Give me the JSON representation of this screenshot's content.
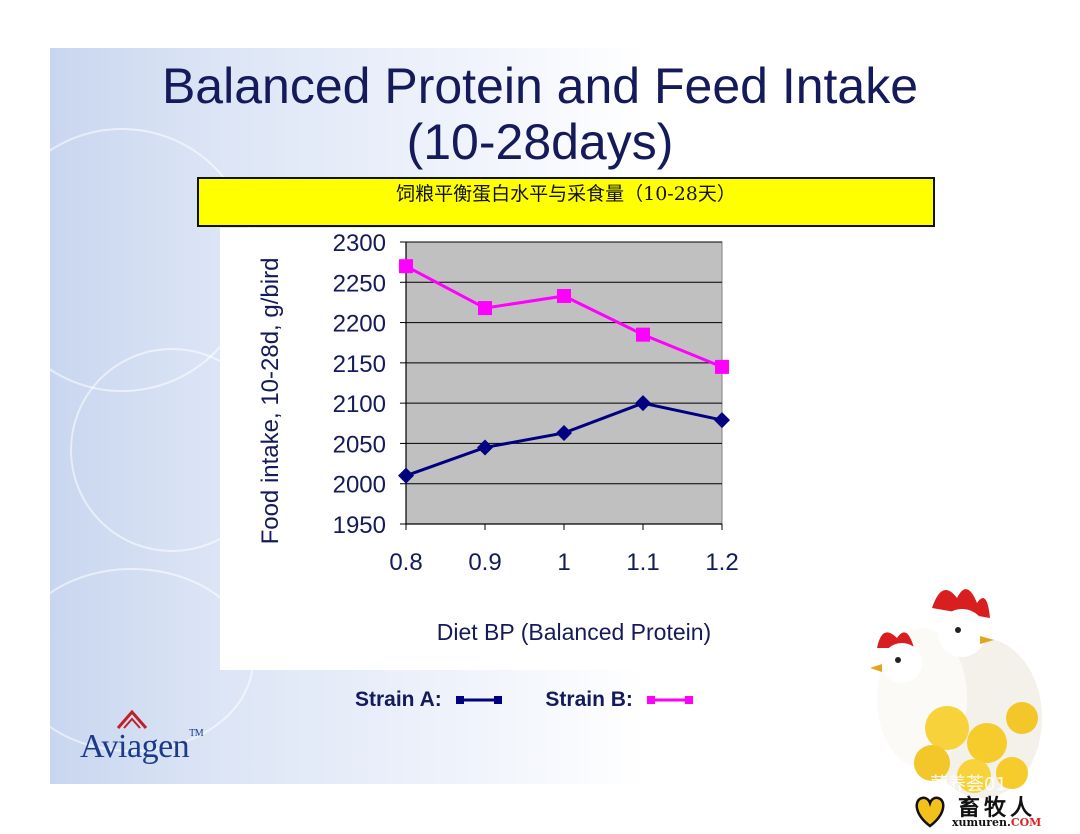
{
  "slide": {
    "title_line1": "Balanced Protein and Feed Intake",
    "title_line2": "(10-28days)",
    "cn_banner": "饲粮平衡蛋白水平与采食量（10-28天）",
    "logo_text": "Aviagen",
    "logo_tm": "TM",
    "watermark": "营养荟01",
    "site_logo_cn": "畜牧人",
    "site_logo_en": "xumuren.",
    "site_logo_com": "COM"
  },
  "legend": {
    "a_label": "Strain A:",
    "b_label": "Strain B:"
  },
  "colors": {
    "title": "#141a5a",
    "strain_a": "#000080",
    "strain_b": "#ff00ff",
    "plot_bg": "#c0c0c0",
    "banner": "#ffff00"
  },
  "chart_data": {
    "type": "line",
    "xlabel": "Diet BP (Balanced Protein)",
    "ylabel": "Food intake, 10-28d, g/bird",
    "x": [
      "0.8",
      "0.9",
      "1",
      "1.1",
      "1.2"
    ],
    "ylim": [
      1950,
      2300
    ],
    "yticks": [
      1950,
      2000,
      2050,
      2100,
      2150,
      2200,
      2250,
      2300
    ],
    "grid": true,
    "series": [
      {
        "name": "Strain A",
        "marker": "diamond",
        "values": [
          2010,
          2045,
          2063,
          2100,
          2079
        ]
      },
      {
        "name": "Strain B",
        "marker": "square",
        "values": [
          2270,
          2218,
          2233,
          2185,
          2145
        ]
      }
    ]
  }
}
